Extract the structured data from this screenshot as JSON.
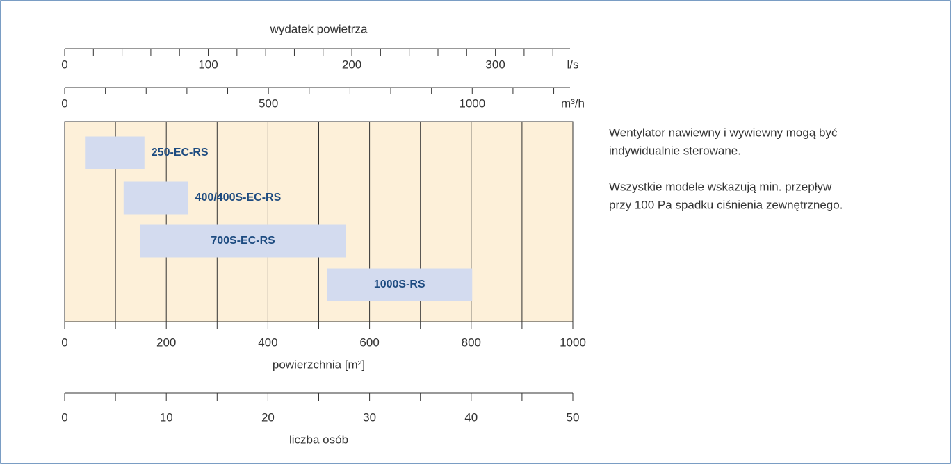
{
  "chart_data": {
    "type": "range-bar",
    "xlabel": "powierzchnia [m²]",
    "xlim": [
      0,
      1000
    ],
    "xticks": [
      0,
      200,
      400,
      600,
      800,
      1000
    ],
    "x_minor_ticks": [
      100,
      300,
      500,
      700,
      900
    ],
    "grid": true,
    "background": "#fdf0d9",
    "color": "#d3dbef",
    "label_color": "#1d4b80",
    "bars": [
      {
        "name": "250-EC-RS",
        "start": 40,
        "end": 157
      },
      {
        "name": "400/400S-EC-RS",
        "start": 116,
        "end": 243
      },
      {
        "name": "700S-EC-RS",
        "start": 148,
        "end": 554
      },
      {
        "name": "1000S-RS",
        "start": 516,
        "end": 802
      }
    ],
    "top_axes": [
      {
        "title": "wydatek powietrza",
        "unit": "l/s",
        "lim": [
          0,
          352
        ],
        "ticks": [
          0,
          100,
          200,
          300
        ],
        "minor_ticks": [
          20,
          40,
          60,
          80,
          120,
          140,
          160,
          180,
          220,
          240,
          260,
          280,
          320,
          340
        ]
      },
      {
        "unit": "m³/h",
        "lim": [
          0,
          1240
        ],
        "ticks": [
          0,
          500,
          1000
        ],
        "minor_ticks": [
          100,
          200,
          300,
          400,
          600,
          700,
          800,
          900,
          1100,
          1200
        ]
      }
    ],
    "bottom_axis": {
      "title": "liczba osób",
      "lim": [
        0,
        50
      ],
      "ticks": [
        0,
        10,
        20,
        30,
        40,
        50
      ],
      "minor_ticks": [
        5,
        15,
        25,
        35,
        45
      ]
    },
    "notes": [
      [
        "Wentylator nawiewny i wywiewny mogą być",
        "indywidualnie sterowane."
      ],
      [
        "Wszystkie modele wskazują min. przepływ",
        "przy 100 Pa spadku ciśnienia zewnętrznego."
      ]
    ]
  }
}
